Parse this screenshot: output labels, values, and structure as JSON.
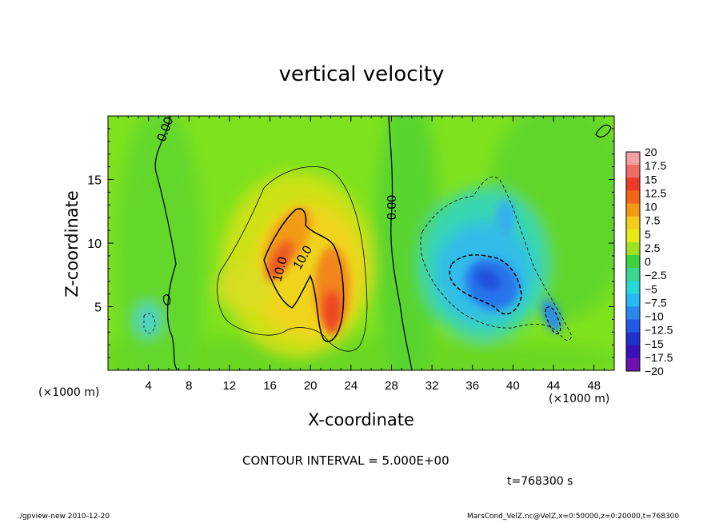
{
  "chart_data": {
    "type": "heatmap",
    "title": "vertical velocity",
    "xlabel": "X-coordinate",
    "ylabel": "Z-coordinate",
    "x_unit_label": "(×1000 m)",
    "xlim": [
      0,
      50
    ],
    "ylim": [
      0,
      20
    ],
    "x_ticks": [
      4,
      8,
      12,
      16,
      20,
      24,
      28,
      32,
      36,
      40,
      44,
      48
    ],
    "y_ticks": [
      5,
      10,
      15
    ],
    "contour_interval_text": "CONTOUR INTERVAL = 5.000E+00",
    "contour_labels": [
      "0.00",
      "10.0",
      "10.0",
      "0.00"
    ],
    "colorbar": {
      "labels": [
        "20",
        "17.5",
        "15",
        "12.5",
        "10",
        "7.5",
        "5",
        "2.5",
        "0",
        "−2.5",
        "−5",
        "−7.5",
        "−10",
        "−12.5",
        "−15",
        "−17.5",
        "−20"
      ],
      "colors": [
        "#f4a0a0",
        "#f06a64",
        "#ec3a24",
        "#f26418",
        "#f49a12",
        "#f6cc1a",
        "#e8e818",
        "#a0e022",
        "#3ed23e",
        "#38d890",
        "#28d8d8",
        "#28b8f2",
        "#2888ee",
        "#2258e4",
        "#1c32c8",
        "#3a10b8",
        "#7010b0"
      ]
    },
    "features": [
      {
        "kind": "updraft",
        "x_center": 20,
        "z_center": 8,
        "peak": 15
      },
      {
        "kind": "downdraft",
        "x_center": 38,
        "z_center": 6.5,
        "peak": -15
      }
    ]
  },
  "annotations": {
    "time": "t=768300 s",
    "footer_left": "./gpview-new  2010-12-20",
    "footer_right": "MarsCond_VelZ.nc@VelZ,x=0:50000,z=0:20000,t=768300"
  }
}
